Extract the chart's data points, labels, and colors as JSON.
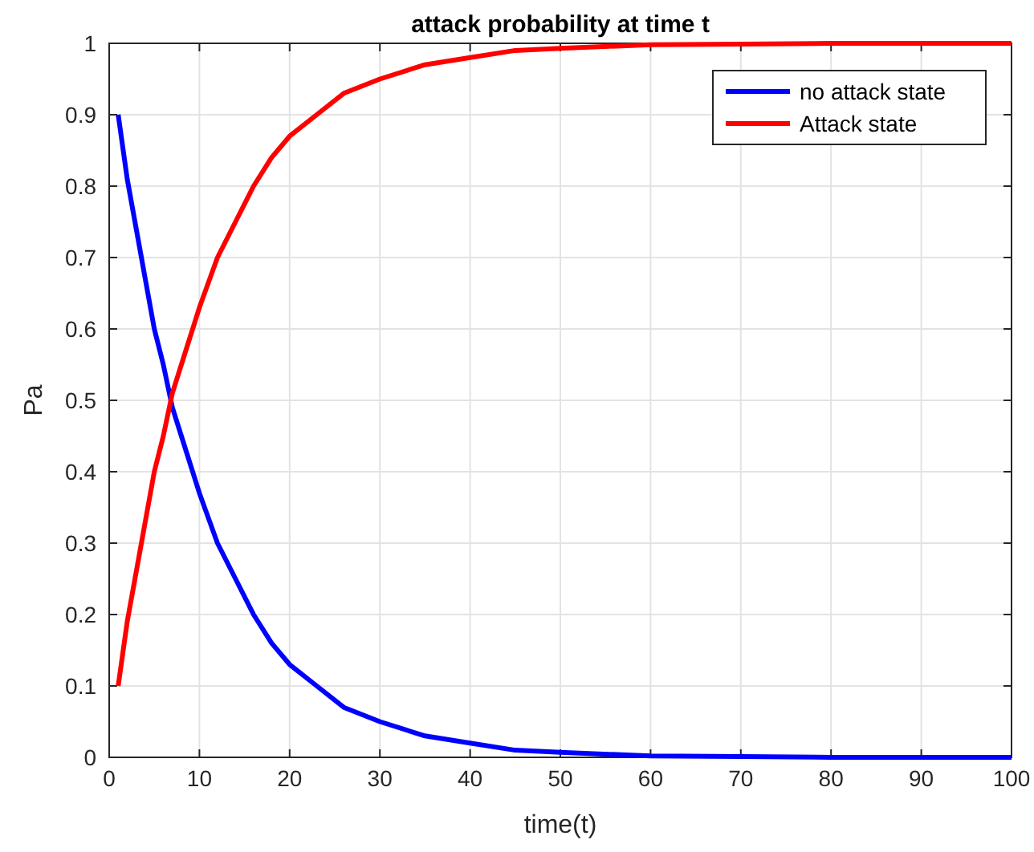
{
  "chart_data": {
    "type": "line",
    "title": "attack probability at time t",
    "xlabel": "time(t)",
    "ylabel": "Pa",
    "x": [
      1,
      2,
      3,
      4,
      5,
      6,
      7,
      8,
      10,
      12,
      14,
      16,
      18,
      20,
      23,
      26,
      30,
      35,
      40,
      45,
      50,
      60,
      70,
      80,
      90,
      100
    ],
    "series": [
      {
        "name": "no attack state",
        "color": "#0000ff",
        "values": [
          0.9,
          0.81,
          0.74,
          0.67,
          0.6,
          0.55,
          0.49,
          0.45,
          0.37,
          0.3,
          0.25,
          0.2,
          0.16,
          0.13,
          0.1,
          0.07,
          0.05,
          0.03,
          0.02,
          0.01,
          0.007,
          0.002,
          0.001,
          0,
          0,
          0
        ]
      },
      {
        "name": "Attack state",
        "color": "#ff0000",
        "values": [
          0.1,
          0.19,
          0.26,
          0.33,
          0.4,
          0.45,
          0.51,
          0.55,
          0.63,
          0.7,
          0.75,
          0.8,
          0.84,
          0.87,
          0.9,
          0.93,
          0.95,
          0.97,
          0.98,
          0.99,
          0.993,
          0.998,
          0.999,
          1,
          1,
          1
        ]
      }
    ],
    "xlim": [
      0,
      100
    ],
    "xticks": [
      0,
      10,
      20,
      30,
      40,
      50,
      60,
      70,
      80,
      90,
      100
    ],
    "ylim": [
      0,
      1
    ],
    "yticks": [
      0,
      0.1,
      0.2,
      0.3,
      0.4,
      0.5,
      0.6,
      0.7,
      0.8,
      0.9,
      1
    ],
    "grid": true,
    "legend": "top right",
    "line_style": "solid",
    "marker": "none"
  }
}
